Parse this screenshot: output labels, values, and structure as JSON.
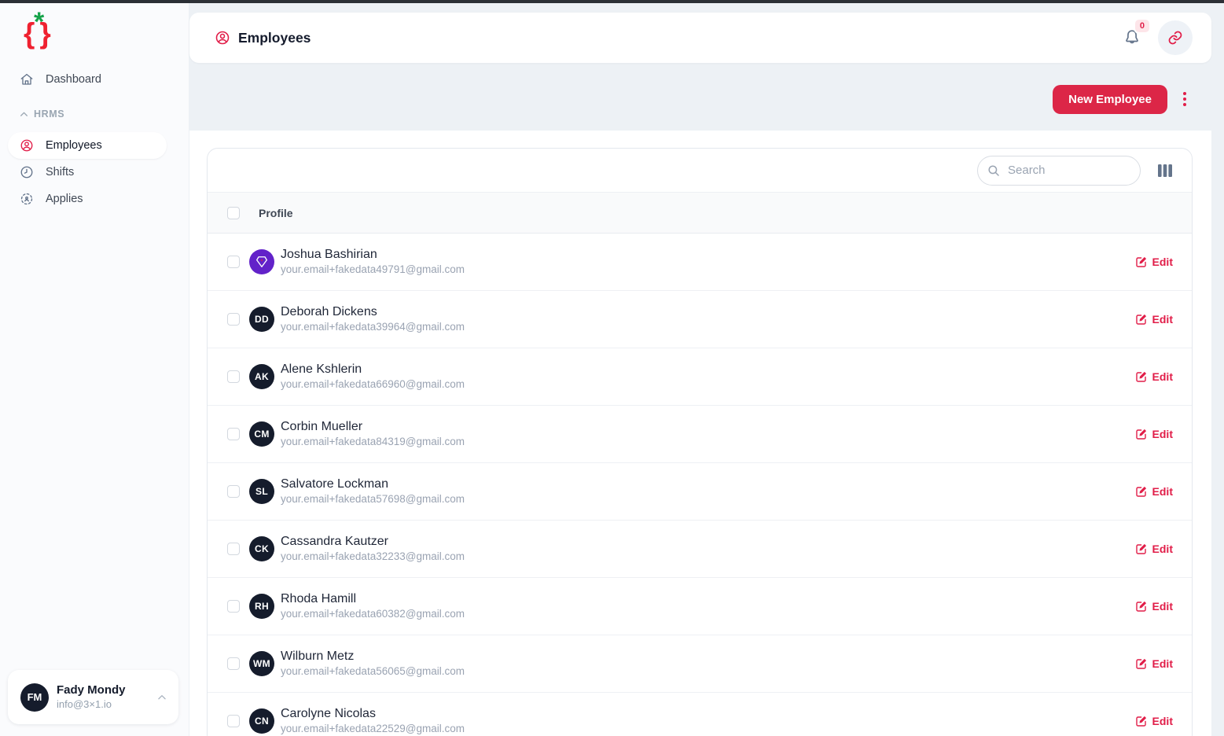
{
  "colors": {
    "primary_red": "#e11d48",
    "button_red": "#dc2647",
    "logo_red": "#ef2130",
    "logo_green": "#16a34a",
    "gem_avatar_purple": "#6222c9",
    "avatar_dark": "#151c2c",
    "page_background": "#edf1f5"
  },
  "sidebar": {
    "logo": {
      "brace_left": "{",
      "star": "*",
      "brace_right": "}"
    },
    "dashboard_label": "Dashboard",
    "group_label": "HRMS",
    "employees_label": "Employees",
    "shifts_label": "Shifts",
    "applies_label": "Applies",
    "user": {
      "initials": "FM",
      "name": "Fady Mondy",
      "email": "info@3×1.io"
    }
  },
  "header": {
    "title": "Employees",
    "notification_count": "0"
  },
  "actions": {
    "new_employee_label": "New Employee"
  },
  "table": {
    "search_placeholder": "Search",
    "profile_header": "Profile",
    "edit_label": "Edit",
    "rows": [
      {
        "name": "Joshua Bashirian",
        "email": "your.email+fakedata49791@gmail.com",
        "avatar_type": "gem"
      },
      {
        "name": "Deborah Dickens",
        "email": "your.email+fakedata39964@gmail.com",
        "avatar_type": "initials",
        "initials": "DD"
      },
      {
        "name": "Alene Kshlerin",
        "email": "your.email+fakedata66960@gmail.com",
        "avatar_type": "initials",
        "initials": "AK"
      },
      {
        "name": "Corbin Mueller",
        "email": "your.email+fakedata84319@gmail.com",
        "avatar_type": "initials",
        "initials": "CM"
      },
      {
        "name": "Salvatore Lockman",
        "email": "your.email+fakedata57698@gmail.com",
        "avatar_type": "initials",
        "initials": "SL"
      },
      {
        "name": "Cassandra Kautzer",
        "email": "your.email+fakedata32233@gmail.com",
        "avatar_type": "initials",
        "initials": "CK"
      },
      {
        "name": "Rhoda Hamill",
        "email": "your.email+fakedata60382@gmail.com",
        "avatar_type": "initials",
        "initials": "RH"
      },
      {
        "name": "Wilburn Metz",
        "email": "your.email+fakedata56065@gmail.com",
        "avatar_type": "initials",
        "initials": "WM"
      },
      {
        "name": "Carolyne Nicolas",
        "email": "your.email+fakedata22529@gmail.com",
        "avatar_type": "initials",
        "initials": "CN"
      }
    ]
  }
}
